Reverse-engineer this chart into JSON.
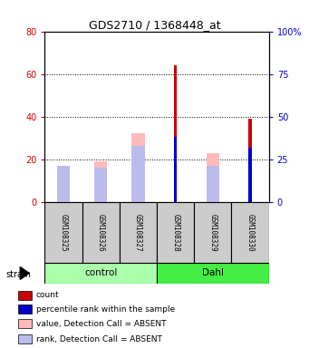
{
  "title": "GDS2710 / 1368448_at",
  "samples": [
    "GSM108325",
    "GSM108326",
    "GSM108327",
    "GSM108328",
    "GSM108329",
    "GSM108330"
  ],
  "group_labels": [
    "control",
    "Dahl"
  ],
  "group_colors": [
    "#aaffaa",
    "#44ee44"
  ],
  "strain_label": "strain",
  "ylim_left": [
    0,
    80
  ],
  "ylim_right": [
    0,
    100
  ],
  "yticks_left": [
    0,
    20,
    40,
    60,
    80
  ],
  "yticks_right": [
    0,
    25,
    50,
    75,
    100
  ],
  "count_values": [
    0,
    0,
    0,
    64,
    0,
    39
  ],
  "rank_values_pct": [
    0,
    0,
    0,
    38,
    0,
    32
  ],
  "value_absent": [
    11,
    19,
    32,
    0,
    23,
    0
  ],
  "rank_absent_pct": [
    21,
    20,
    33,
    0,
    21,
    0
  ],
  "count_color": "#cc0000",
  "rank_color": "#0000cc",
  "value_absent_color": "#ffbbbb",
  "rank_absent_color": "#bbbbee",
  "left_axis_color": "#cc0000",
  "right_axis_color": "#0000cc",
  "bg_color": "#cccccc",
  "plot_bg": "#ffffff",
  "legend_items": [
    [
      "#cc0000",
      "count"
    ],
    [
      "#0000cc",
      "percentile rank within the sample"
    ],
    [
      "#ffbbbb",
      "value, Detection Call = ABSENT"
    ],
    [
      "#bbbbee",
      "rank, Detection Call = ABSENT"
    ]
  ]
}
